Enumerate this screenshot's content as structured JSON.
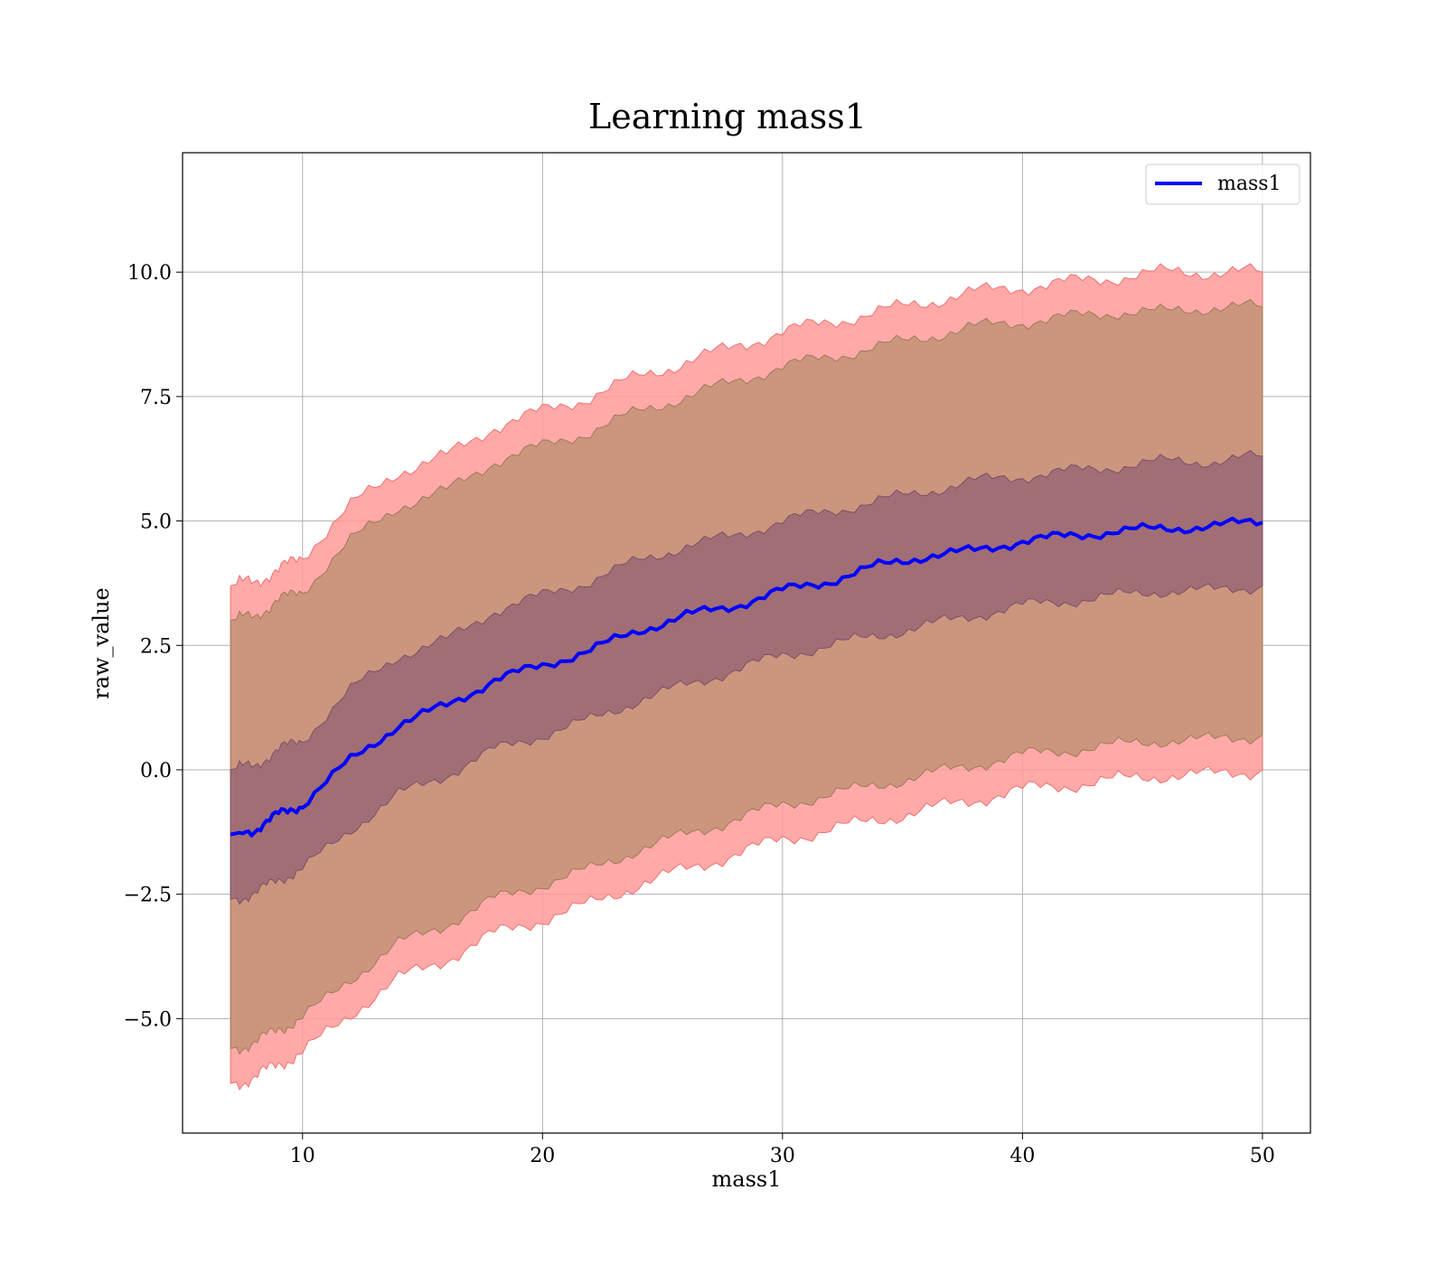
{
  "chart_data": {
    "type": "area",
    "title": "Learning mass1",
    "xlabel": "mass1",
    "ylabel": "raw_value",
    "xlim": [
      5,
      52
    ],
    "ylim": [
      -7.3,
      12.4
    ],
    "x_ticks": [
      10,
      20,
      30,
      40,
      50
    ],
    "x_tick_labels": [
      "10",
      "20",
      "30",
      "40",
      "50"
    ],
    "y_ticks": [
      -5.0,
      -2.5,
      0.0,
      2.5,
      5.0,
      7.5,
      10.0
    ],
    "y_tick_labels": [
      "−5.0",
      "−2.5",
      "0.0",
      "2.5",
      "5.0",
      "7.5",
      "10.0"
    ],
    "grid": true,
    "legend_position": "top-right",
    "colors": {
      "mean_line": "#0000ff",
      "outer_band": "#ff9a9a",
      "middle_band": "#c8957a",
      "inner_band": "#9e6b76",
      "grid": "#b0b0b0"
    },
    "x": [
      7,
      8,
      9,
      10,
      12,
      14,
      16,
      18,
      20,
      22,
      24,
      26,
      28,
      30,
      32,
      34,
      36,
      38,
      40,
      42,
      44,
      46,
      48,
      50
    ],
    "series": [
      {
        "name": "mass1",
        "role": "mean",
        "values": [
          -1.3,
          -1.2,
          -0.9,
          -0.7,
          0.2,
          0.9,
          1.3,
          1.8,
          2.1,
          2.4,
          2.8,
          3.1,
          3.3,
          3.6,
          3.8,
          4.1,
          4.3,
          4.4,
          4.6,
          4.7,
          4.8,
          4.85,
          4.9,
          5.0
        ]
      },
      {
        "role": "outer_upper",
        "values": [
          3.7,
          3.8,
          4.0,
          4.3,
          5.3,
          6.0,
          6.3,
          6.9,
          7.2,
          7.5,
          7.9,
          8.2,
          8.5,
          8.8,
          9.0,
          9.2,
          9.4,
          9.6,
          9.7,
          9.8,
          9.9,
          10.0,
          10.0,
          10.0
        ]
      },
      {
        "role": "outer_lower",
        "values": [
          -6.3,
          -6.2,
          -5.9,
          -5.7,
          -4.9,
          -4.2,
          -3.8,
          -3.3,
          -3.0,
          -2.7,
          -2.3,
          -2.0,
          -1.7,
          -1.4,
          -1.2,
          -1.0,
          -0.8,
          -0.6,
          -0.4,
          -0.3,
          -0.2,
          -0.1,
          -0.1,
          0.0
        ]
      },
      {
        "role": "middle_upper",
        "values": [
          3.0,
          3.1,
          3.4,
          3.6,
          4.6,
          5.3,
          5.6,
          6.2,
          6.5,
          6.8,
          7.2,
          7.5,
          7.8,
          8.1,
          8.3,
          8.5,
          8.7,
          8.9,
          9.0,
          9.1,
          9.2,
          9.2,
          9.3,
          9.3
        ]
      },
      {
        "role": "middle_lower",
        "values": [
          -5.6,
          -5.5,
          -5.2,
          -5.0,
          -4.2,
          -3.5,
          -3.1,
          -2.6,
          -2.3,
          -2.0,
          -1.6,
          -1.3,
          -1.0,
          -0.7,
          -0.5,
          -0.3,
          -0.1,
          0.1,
          0.3,
          0.4,
          0.5,
          0.6,
          0.6,
          0.7
        ]
      },
      {
        "role": "inner_upper",
        "values": [
          0.0,
          0.1,
          0.4,
          0.6,
          1.6,
          2.3,
          2.6,
          3.2,
          3.5,
          3.8,
          4.2,
          4.5,
          4.7,
          5.0,
          5.2,
          5.4,
          5.6,
          5.8,
          5.9,
          6.0,
          6.1,
          6.2,
          6.2,
          6.3
        ]
      },
      {
        "role": "inner_lower",
        "values": [
          -2.6,
          -2.5,
          -2.2,
          -2.0,
          -1.2,
          -0.5,
          -0.1,
          0.4,
          0.7,
          1.0,
          1.4,
          1.7,
          2.0,
          2.3,
          2.5,
          2.7,
          2.9,
          3.1,
          3.3,
          3.4,
          3.5,
          3.6,
          3.6,
          3.7
        ]
      }
    ]
  }
}
